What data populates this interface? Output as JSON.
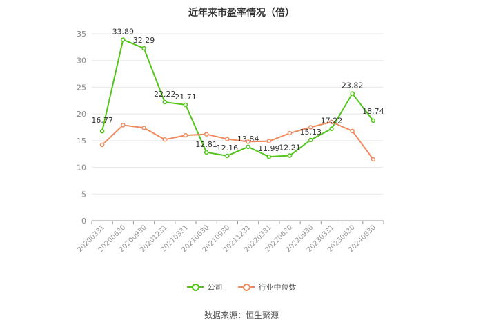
{
  "title": "近年来市盈率情况（倍）",
  "source": "数据来源：恒生聚源",
  "colors": {
    "company": "#52c41a",
    "industry": "#f08a5d",
    "grid": "#e8e8e8",
    "axis": "#999999"
  },
  "chart_data": {
    "type": "line",
    "title": "近年来市盈率情况（倍）",
    "categories": [
      "20200331",
      "20200630",
      "20200930",
      "20201231",
      "20210331",
      "20210630",
      "20210930",
      "20211231",
      "20220331",
      "20220630",
      "20220930",
      "20230331",
      "20230630",
      "20240830"
    ],
    "ylim": [
      0,
      35
    ],
    "yticks": [
      0,
      5,
      10,
      15,
      20,
      25,
      30,
      35
    ],
    "grid": true,
    "legend_position": "bottom",
    "series": [
      {
        "name": "公司",
        "values": [
          16.77,
          33.89,
          32.29,
          22.22,
          21.71,
          12.81,
          12.16,
          13.84,
          11.99,
          12.21,
          15.13,
          17.22,
          23.82,
          18.74
        ],
        "labels": [
          "16.77",
          "33.89",
          "32.29",
          "22.22",
          "21.71",
          "12.81",
          "12.16",
          "13.84",
          "11.99",
          "12.21",
          "15.13",
          "17.22",
          "23.82",
          "18.74"
        ]
      },
      {
        "name": "行业中位数",
        "values": [
          14.2,
          17.9,
          17.4,
          15.2,
          16.0,
          16.2,
          15.3,
          14.8,
          14.9,
          16.4,
          17.5,
          18.5,
          16.8,
          11.5
        ]
      }
    ]
  }
}
